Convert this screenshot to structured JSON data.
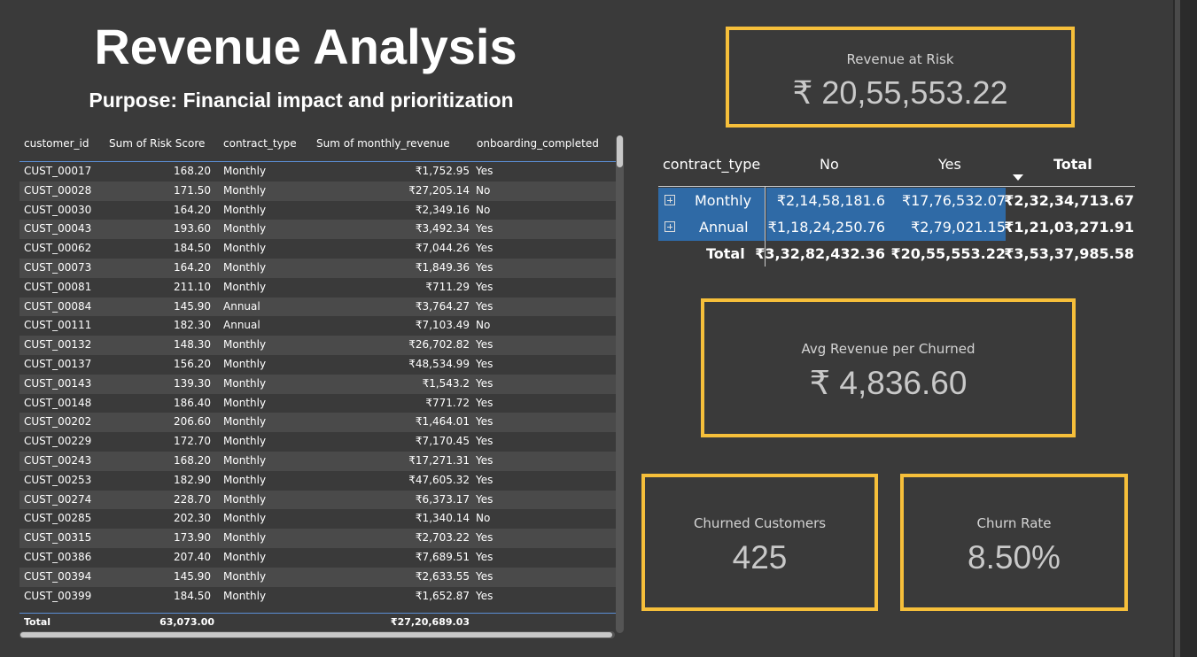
{
  "header": {
    "title": "Revenue Analysis",
    "subtitle": "Purpose: Financial impact and prioritization"
  },
  "table": {
    "columns": [
      "customer_id",
      "Sum of Risk Score",
      "contract_type",
      "Sum of monthly_revenue",
      "onboarding_completed"
    ],
    "rows": [
      [
        "CUST_00017",
        "168.20",
        "Monthly",
        "₹1,752.95",
        "Yes"
      ],
      [
        "CUST_00028",
        "171.50",
        "Monthly",
        "₹27,205.14",
        "No"
      ],
      [
        "CUST_00030",
        "164.20",
        "Monthly",
        "₹2,349.16",
        "No"
      ],
      [
        "CUST_00043",
        "193.60",
        "Monthly",
        "₹3,492.34",
        "Yes"
      ],
      [
        "CUST_00062",
        "184.50",
        "Monthly",
        "₹7,044.26",
        "Yes"
      ],
      [
        "CUST_00073",
        "164.20",
        "Monthly",
        "₹1,849.36",
        "Yes"
      ],
      [
        "CUST_00081",
        "211.10",
        "Monthly",
        "₹711.29",
        "Yes"
      ],
      [
        "CUST_00084",
        "145.90",
        "Annual",
        "₹3,764.27",
        "Yes"
      ],
      [
        "CUST_00111",
        "182.30",
        "Annual",
        "₹7,103.49",
        "No"
      ],
      [
        "CUST_00132",
        "148.30",
        "Monthly",
        "₹26,702.82",
        "Yes"
      ],
      [
        "CUST_00137",
        "156.20",
        "Monthly",
        "₹48,534.99",
        "Yes"
      ],
      [
        "CUST_00143",
        "139.30",
        "Monthly",
        "₹1,543.2",
        "Yes"
      ],
      [
        "CUST_00148",
        "186.40",
        "Monthly",
        "₹771.72",
        "Yes"
      ],
      [
        "CUST_00202",
        "206.60",
        "Monthly",
        "₹1,464.01",
        "Yes"
      ],
      [
        "CUST_00229",
        "172.70",
        "Monthly",
        "₹7,170.45",
        "Yes"
      ],
      [
        "CUST_00243",
        "168.20",
        "Monthly",
        "₹17,271.31",
        "Yes"
      ],
      [
        "CUST_00253",
        "182.90",
        "Monthly",
        "₹47,605.32",
        "Yes"
      ],
      [
        "CUST_00274",
        "228.70",
        "Monthly",
        "₹6,373.17",
        "Yes"
      ],
      [
        "CUST_00285",
        "202.30",
        "Monthly",
        "₹1,340.14",
        "No"
      ],
      [
        "CUST_00315",
        "173.90",
        "Monthly",
        "₹2,703.22",
        "Yes"
      ],
      [
        "CUST_00386",
        "207.40",
        "Monthly",
        "₹7,689.51",
        "Yes"
      ],
      [
        "CUST_00394",
        "145.90",
        "Monthly",
        "₹2,633.55",
        "Yes"
      ],
      [
        "CUST_00399",
        "184.50",
        "Monthly",
        "₹1,652.87",
        "Yes"
      ]
    ],
    "total": {
      "label": "Total",
      "risk": "63,073.00",
      "revenue": "₹27,20,689.03"
    }
  },
  "kpis": {
    "revenue_at_risk": {
      "label": "Revenue at Risk",
      "value": "₹ 20,55,553.22"
    },
    "avg_revenue": {
      "label": "Avg Revenue per Churned",
      "value": "₹ 4,836.60"
    },
    "churned": {
      "label": "Churned Customers",
      "value": "425"
    },
    "churn_rate": {
      "label": "Churn Rate",
      "value": "8.50%"
    }
  },
  "matrix": {
    "headers": [
      "contract_type",
      "No",
      "Yes",
      "Total"
    ],
    "rows": [
      {
        "label": "Monthly",
        "no": "₹2,14,58,181.6",
        "yes": "₹17,76,532.07",
        "total": "₹2,32,34,713.67"
      },
      {
        "label": "Annual",
        "no": "₹1,18,24,250.76",
        "yes": "₹2,79,021.15",
        "total": "₹1,21,03,271.91"
      }
    ],
    "total": {
      "label": "Total",
      "no": "₹3,32,82,432.36",
      "yes": "₹20,55,553.22",
      "total": "₹3,53,37,985.58"
    }
  },
  "colors": {
    "background": "#3a3a3a",
    "card_border": "#f6bf3a",
    "selection": "#2f6aa6"
  }
}
